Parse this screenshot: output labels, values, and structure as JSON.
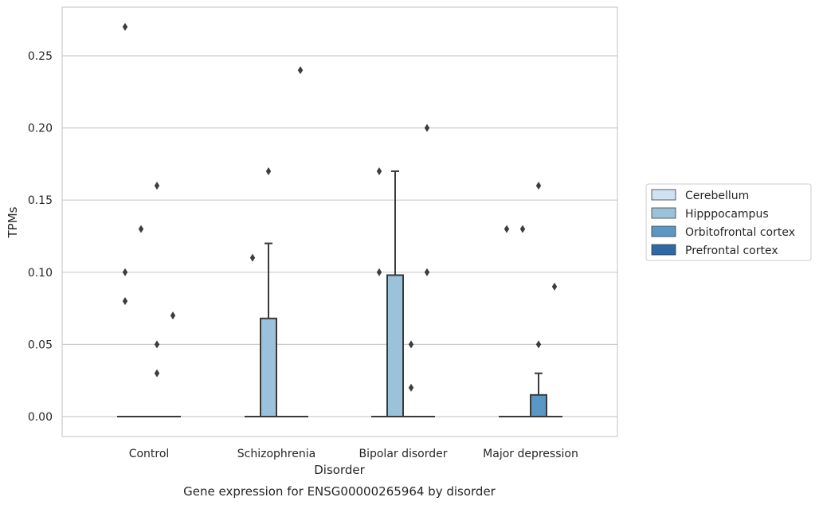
{
  "chart_data": {
    "type": "box",
    "xlabel": "Disorder",
    "ylabel": "TPMs",
    "caption": "Gene expression for ENSG00000265964 by disorder",
    "categories": [
      "Control",
      "Schizophrenia",
      "Bipolar disorder",
      "Major depression"
    ],
    "yticks": [
      "0.00",
      "0.05",
      "0.10",
      "0.15",
      "0.20",
      "0.25"
    ],
    "ytick_values": [
      0,
      0.05,
      0.1,
      0.15,
      0.2,
      0.25
    ],
    "ylim": [
      -0.013,
      0.284
    ],
    "grid": "horizontal",
    "legend_position": "right",
    "series": [
      {
        "name": "Cerebellum",
        "color": "#d0e1f2",
        "boxes": [
          {
            "q1": 0,
            "median": 0,
            "q3": 0,
            "whislo": 0,
            "whishi": 0,
            "fliers": [
              0.08,
              0.1,
              0.27
            ]
          },
          {
            "q1": 0,
            "median": 0,
            "q3": 0,
            "whislo": 0,
            "whishi": 0,
            "fliers": [
              0.11
            ]
          },
          {
            "q1": 0,
            "median": 0,
            "q3": 0,
            "whislo": 0,
            "whishi": 0,
            "fliers": [
              0.1,
              0.17
            ]
          },
          {
            "q1": 0,
            "median": 0,
            "q3": 0,
            "whislo": 0,
            "whishi": 0,
            "fliers": [
              0.13
            ]
          }
        ]
      },
      {
        "name": "Hipppocampus",
        "color": "#9ac3db",
        "boxes": [
          {
            "q1": 0,
            "median": 0,
            "q3": 0,
            "whislo": 0,
            "whishi": 0,
            "fliers": [
              0.13
            ]
          },
          {
            "q1": 0,
            "median": 0,
            "q3": 0.068,
            "whislo": 0,
            "whishi": 0.12,
            "fliers": [
              0.17
            ]
          },
          {
            "q1": 0,
            "median": 0,
            "q3": 0.098,
            "whislo": 0,
            "whishi": 0.17,
            "fliers": []
          },
          {
            "q1": 0,
            "median": 0,
            "q3": 0,
            "whislo": 0,
            "whishi": 0,
            "fliers": [
              0.13
            ]
          }
        ]
      },
      {
        "name": "Orbitofrontal cortex",
        "color": "#5a97c4",
        "boxes": [
          {
            "q1": 0,
            "median": 0,
            "q3": 0,
            "whislo": 0,
            "whishi": 0,
            "fliers": [
              0.03,
              0.05,
              0.16
            ]
          },
          {
            "q1": 0,
            "median": 0,
            "q3": 0,
            "whislo": 0,
            "whishi": 0,
            "fliers": []
          },
          {
            "q1": 0,
            "median": 0,
            "q3": 0,
            "whislo": 0,
            "whishi": 0,
            "fliers": [
              0.02,
              0.05
            ]
          },
          {
            "q1": 0,
            "median": 0,
            "q3": 0.015,
            "whislo": 0,
            "whishi": 0.03,
            "fliers": [
              0.05,
              0.16
            ]
          }
        ]
      },
      {
        "name": "Prefrontal cortex",
        "color": "#2e68a6",
        "boxes": [
          {
            "q1": 0,
            "median": 0,
            "q3": 0,
            "whislo": 0,
            "whishi": 0,
            "fliers": [
              0.07
            ]
          },
          {
            "q1": 0,
            "median": 0,
            "q3": 0,
            "whislo": 0,
            "whishi": 0,
            "fliers": [
              0.24
            ]
          },
          {
            "q1": 0,
            "median": 0,
            "q3": 0,
            "whislo": 0,
            "whishi": 0,
            "fliers": [
              0.1,
              0.2
            ]
          },
          {
            "q1": 0,
            "median": 0,
            "q3": 0,
            "whislo": 0,
            "whishi": 0,
            "fliers": [
              0.09
            ]
          }
        ]
      }
    ]
  }
}
